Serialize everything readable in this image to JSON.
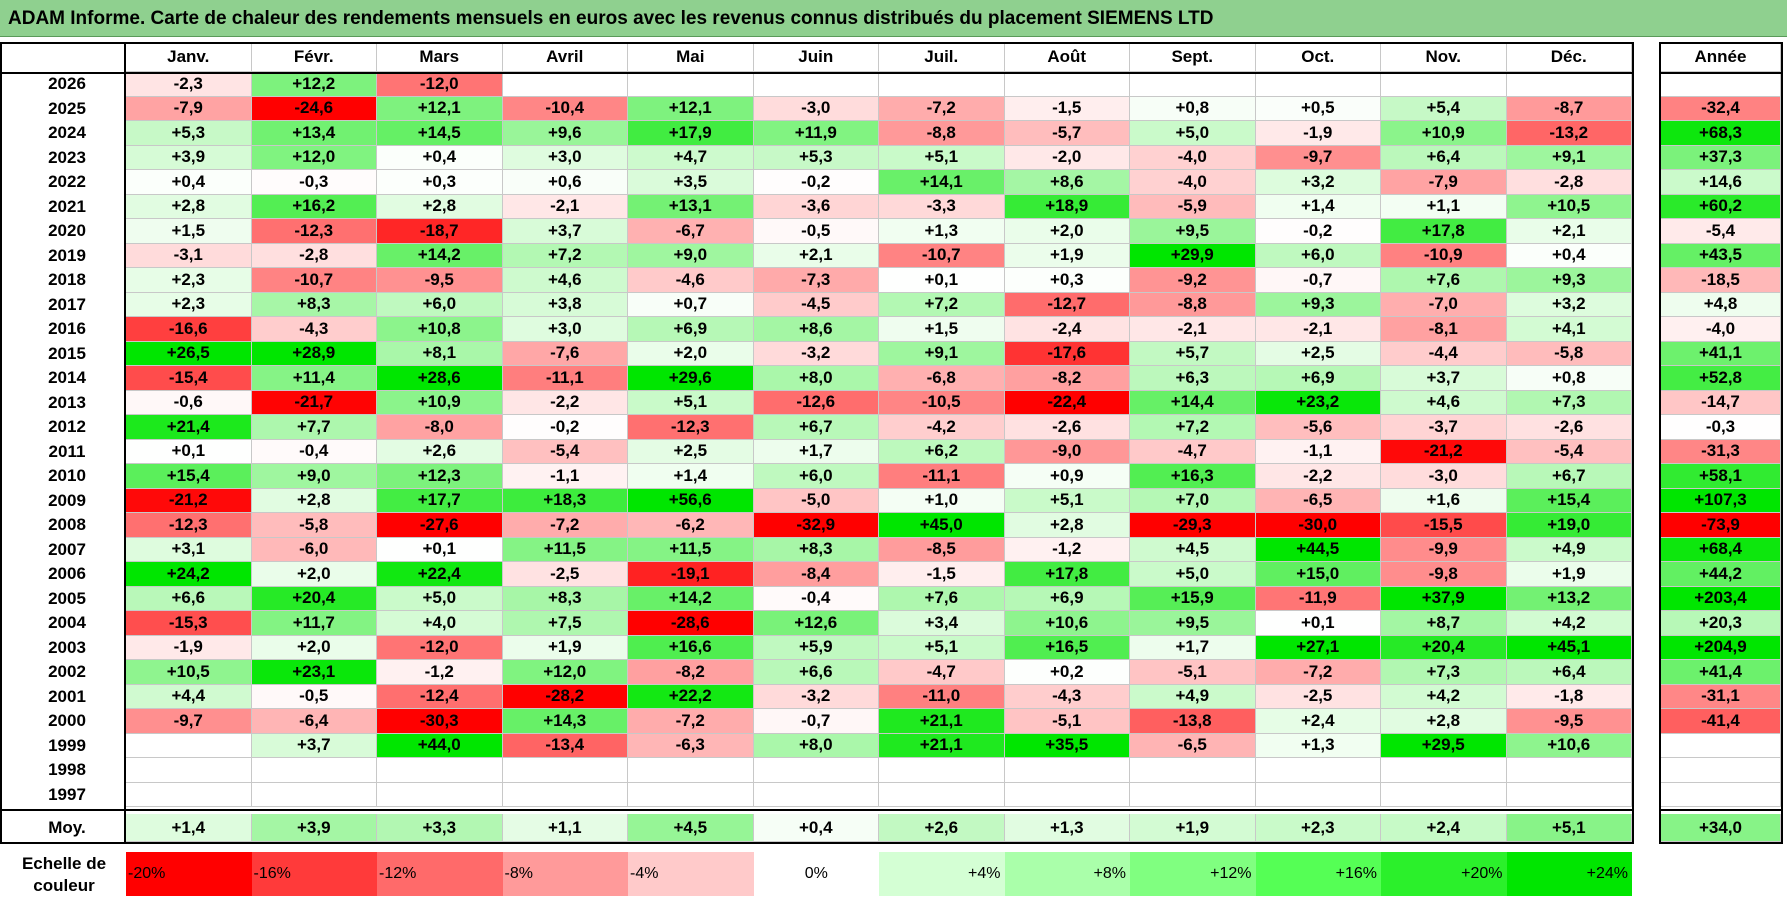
{
  "title": "ADAM Informe. Carte de chaleur des rendements mensuels en euros avec les revenus connus distribués du placement SIEMENS LTD",
  "chart_data": {
    "type": "heatmap",
    "title": "ADAM Informe. Carte de chaleur des rendements mensuels en euros avec les revenus connus distribués du placement SIEMENS LTD",
    "months": [
      "Janv.",
      "Févr.",
      "Mars",
      "Avril",
      "Mai",
      "Juin",
      "Juil.",
      "Août",
      "Sept.",
      "Oct.",
      "Nov.",
      "Déc."
    ],
    "year_header": "Année",
    "rows": [
      {
        "year": "2026",
        "values": [
          "-2,3",
          "+12,2",
          "-12,0",
          "",
          "",
          "",
          "",
          "",
          "",
          "",
          "",
          ""
        ],
        "annual": ""
      },
      {
        "year": "2025",
        "values": [
          "-7,9",
          "-24,6",
          "+12,1",
          "-10,4",
          "+12,1",
          "-3,0",
          "-7,2",
          "-1,5",
          "+0,8",
          "+0,5",
          "+5,4",
          "-8,7"
        ],
        "annual": "-32,4"
      },
      {
        "year": "2024",
        "values": [
          "+5,3",
          "+13,4",
          "+14,5",
          "+9,6",
          "+17,9",
          "+11,9",
          "-8,8",
          "-5,7",
          "+5,0",
          "-1,9",
          "+10,9",
          "-13,2"
        ],
        "annual": "+68,3"
      },
      {
        "year": "2023",
        "values": [
          "+3,9",
          "+12,0",
          "+0,4",
          "+3,0",
          "+4,7",
          "+5,3",
          "+5,1",
          "-2,0",
          "-4,0",
          "-9,7",
          "+6,4",
          "+9,1"
        ],
        "annual": "+37,3"
      },
      {
        "year": "2022",
        "values": [
          "+0,4",
          "-0,3",
          "+0,3",
          "+0,6",
          "+3,5",
          "-0,2",
          "+14,1",
          "+8,6",
          "-4,0",
          "+3,2",
          "-7,9",
          "-2,8"
        ],
        "annual": "+14,6"
      },
      {
        "year": "2021",
        "values": [
          "+2,8",
          "+16,2",
          "+2,8",
          "-2,1",
          "+13,1",
          "-3,6",
          "-3,3",
          "+18,9",
          "-5,9",
          "+1,4",
          "+1,1",
          "+10,5"
        ],
        "annual": "+60,2"
      },
      {
        "year": "2020",
        "values": [
          "+1,5",
          "-12,3",
          "-18,7",
          "+3,7",
          "-6,7",
          "-0,5",
          "+1,3",
          "+2,0",
          "+9,5",
          "-0,2",
          "+17,8",
          "+2,1"
        ],
        "annual": "-5,4"
      },
      {
        "year": "2019",
        "values": [
          "-3,1",
          "-2,8",
          "+14,2",
          "+7,2",
          "+9,0",
          "+2,1",
          "-10,7",
          "+1,9",
          "+29,9",
          "+6,0",
          "-10,9",
          "+0,4"
        ],
        "annual": "+43,5"
      },
      {
        "year": "2018",
        "values": [
          "+2,3",
          "-10,7",
          "-9,5",
          "+4,6",
          "-4,6",
          "-7,3",
          "+0,1",
          "+0,3",
          "-9,2",
          "-0,7",
          "+7,6",
          "+9,3"
        ],
        "annual": "-18,5"
      },
      {
        "year": "2017",
        "values": [
          "+2,3",
          "+8,3",
          "+6,0",
          "+3,8",
          "+0,7",
          "-4,5",
          "+7,2",
          "-12,7",
          "-8,8",
          "+9,3",
          "-7,0",
          "+3,2"
        ],
        "annual": "+4,8"
      },
      {
        "year": "2016",
        "values": [
          "-16,6",
          "-4,3",
          "+10,8",
          "+3,0",
          "+6,9",
          "+8,6",
          "+1,5",
          "-2,4",
          "-2,1",
          "-2,1",
          "-8,1",
          "+4,1"
        ],
        "annual": "-4,0"
      },
      {
        "year": "2015",
        "values": [
          "+26,5",
          "+28,9",
          "+8,1",
          "-7,6",
          "+2,0",
          "-3,2",
          "+9,1",
          "-17,6",
          "+5,7",
          "+2,5",
          "-4,4",
          "-5,8"
        ],
        "annual": "+41,1"
      },
      {
        "year": "2014",
        "values": [
          "-15,4",
          "+11,4",
          "+28,6",
          "-11,1",
          "+29,6",
          "+8,0",
          "-6,8",
          "-8,2",
          "+6,3",
          "+6,9",
          "+3,7",
          "+0,8"
        ],
        "annual": "+52,8"
      },
      {
        "year": "2013",
        "values": [
          "-0,6",
          "-21,7",
          "+10,9",
          "-2,2",
          "+5,1",
          "-12,6",
          "-10,5",
          "-22,4",
          "+14,4",
          "+23,2",
          "+4,6",
          "+7,3"
        ],
        "annual": "-14,7"
      },
      {
        "year": "2012",
        "values": [
          "+21,4",
          "+7,7",
          "-8,0",
          "-0,2",
          "-12,3",
          "+6,7",
          "-4,2",
          "-2,6",
          "+7,2",
          "-5,6",
          "-3,7",
          "-2,6"
        ],
        "annual": "-0,3"
      },
      {
        "year": "2011",
        "values": [
          "+0,1",
          "-0,4",
          "+2,6",
          "-5,4",
          "+2,5",
          "+1,7",
          "+6,2",
          "-9,0",
          "-4,7",
          "-1,1",
          "-21,2",
          "-5,4"
        ],
        "annual": "-31,3"
      },
      {
        "year": "2010",
        "values": [
          "+15,4",
          "+9,0",
          "+12,3",
          "-1,1",
          "+1,4",
          "+6,0",
          "-11,1",
          "+0,9",
          "+16,3",
          "-2,2",
          "-3,0",
          "+6,7"
        ],
        "annual": "+58,1"
      },
      {
        "year": "2009",
        "values": [
          "-21,2",
          "+2,8",
          "+17,7",
          "+18,3",
          "+56,6",
          "-5,0",
          "+1,0",
          "+5,1",
          "+7,0",
          "-6,5",
          "+1,6",
          "+15,4"
        ],
        "annual": "+107,3"
      },
      {
        "year": "2008",
        "values": [
          "-12,3",
          "-5,8",
          "-27,6",
          "-7,2",
          "-6,2",
          "-32,9",
          "+45,0",
          "+2,8",
          "-29,3",
          "-30,0",
          "-15,5",
          "+19,0"
        ],
        "annual": "-73,9"
      },
      {
        "year": "2007",
        "values": [
          "+3,1",
          "-6,0",
          "+0,1",
          "+11,5",
          "+11,5",
          "+8,3",
          "-8,5",
          "-1,2",
          "+4,5",
          "+44,5",
          "-9,9",
          "+4,9"
        ],
        "annual": "+68,4"
      },
      {
        "year": "2006",
        "values": [
          "+24,2",
          "+2,0",
          "+22,4",
          "-2,5",
          "-19,1",
          "-8,4",
          "-1,5",
          "+17,8",
          "+5,0",
          "+15,0",
          "-9,8",
          "+1,9"
        ],
        "annual": "+44,2"
      },
      {
        "year": "2005",
        "values": [
          "+6,6",
          "+20,4",
          "+5,0",
          "+8,3",
          "+14,2",
          "-0,4",
          "+7,6",
          "+6,9",
          "+15,9",
          "-11,9",
          "+37,9",
          "+13,2"
        ],
        "annual": "+203,4"
      },
      {
        "year": "2004",
        "values": [
          "-15,3",
          "+11,7",
          "+4,0",
          "+7,5",
          "-28,6",
          "+12,6",
          "+3,4",
          "+10,6",
          "+9,5",
          "+0,1",
          "+8,7",
          "+4,2"
        ],
        "annual": "+20,3"
      },
      {
        "year": "2003",
        "values": [
          "-1,9",
          "+2,0",
          "-12,0",
          "+1,9",
          "+16,6",
          "+5,9",
          "+5,1",
          "+16,5",
          "+1,7",
          "+27,1",
          "+20,4",
          "+45,1"
        ],
        "annual": "+204,9"
      },
      {
        "year": "2002",
        "values": [
          "+10,5",
          "+23,1",
          "-1,2",
          "+12,0",
          "-8,2",
          "+6,6",
          "-4,7",
          "+0,2",
          "-5,1",
          "-7,2",
          "+7,3",
          "+6,4"
        ],
        "annual": "+41,4"
      },
      {
        "year": "2001",
        "values": [
          "+4,4",
          "-0,5",
          "-12,4",
          "-28,2",
          "+22,2",
          "-3,2",
          "-11,0",
          "-4,3",
          "+4,9",
          "-2,5",
          "+4,2",
          "-1,8"
        ],
        "annual": "-31,1"
      },
      {
        "year": "2000",
        "values": [
          "-9,7",
          "-6,4",
          "-30,3",
          "+14,3",
          "-7,2",
          "-0,7",
          "+21,1",
          "-5,1",
          "-13,8",
          "+2,4",
          "+2,8",
          "-9,5"
        ],
        "annual": "-41,4"
      },
      {
        "year": "1999",
        "values": [
          "",
          "+3,7",
          "+44,0",
          "-13,4",
          "-6,3",
          "+8,0",
          "+21,1",
          "+35,5",
          "-6,5",
          "+1,3",
          "+29,5",
          "+10,6"
        ],
        "annual": ""
      },
      {
        "year": "1998",
        "values": [
          "",
          "",
          "",
          "",
          "",
          "",
          "",
          "",
          "",
          "",
          "",
          ""
        ],
        "annual": ""
      },
      {
        "year": "1997",
        "values": [
          "",
          "",
          "",
          "",
          "",
          "",
          "",
          "",
          "",
          "",
          "",
          ""
        ],
        "annual": ""
      }
    ],
    "average": {
      "label": "Moy.",
      "values": [
        "+1,4",
        "+3,9",
        "+3,3",
        "+1,1",
        "+4,5",
        "+0,4",
        "+2,6",
        "+1,3",
        "+1,9",
        "+2,3",
        "+2,4",
        "+5,1"
      ],
      "annual": "+34,0"
    },
    "color_scale": {
      "label_line1": "Echelle de",
      "label_line2": "couleur",
      "steps": [
        "-20%",
        "-16%",
        "-12%",
        "-8%",
        "-4%",
        "0%",
        "+4%",
        "+8%",
        "+12%",
        "+16%",
        "+20%",
        "+24%"
      ],
      "colors": [
        "#ff0000",
        "#ff3a3a",
        "#ff6a6a",
        "#ff9a9a",
        "#ffcaca",
        "#ffffff",
        "#d4ffd4",
        "#aaffaa",
        "#80ff80",
        "#55ff55",
        "#2bf02b",
        "#00e600"
      ]
    }
  }
}
